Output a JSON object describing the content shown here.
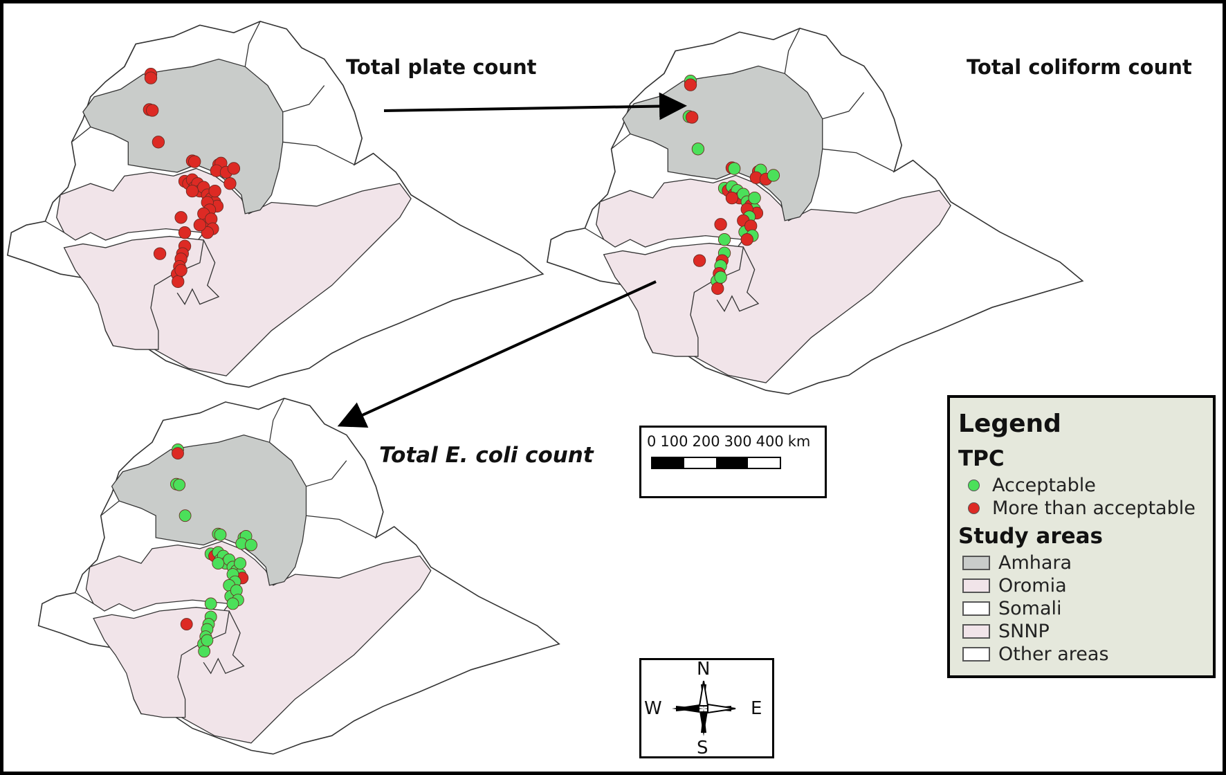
{
  "titles": {
    "tpc": "Total plate count",
    "tcc": "Total coliform count",
    "ecoli": "Total E. coli count"
  },
  "legend": {
    "title": "Legend",
    "tpc_heading": "TPC",
    "tpc_items": [
      {
        "label": "Acceptable",
        "color": "#4be05a"
      },
      {
        "label": "More than acceptable",
        "color": "#dd2a24"
      }
    ],
    "study_heading": "Study areas",
    "study_items": [
      {
        "label": "Amhara",
        "color": "#c9ccca"
      },
      {
        "label": "Oromia",
        "color": "#f1e4e9"
      },
      {
        "label": "Somali",
        "color": "#ffffff"
      },
      {
        "label": "SNNP",
        "color": "#f1e4e9"
      },
      {
        "label": "Other areas",
        "color": "#ffffff"
      }
    ]
  },
  "scale_bar": {
    "labels": [
      "0",
      "100",
      "200",
      "300",
      "400",
      "km"
    ]
  },
  "compass": {
    "n": "N",
    "s": "S",
    "e": "E",
    "w": "W"
  },
  "colors": {
    "acceptable": "#4be05a",
    "unacceptable": "#dd2a24",
    "amhara": "#c9ccca",
    "oromia": "#f1e4e9",
    "border": "#333333"
  },
  "maps": [
    {
      "key": "tpc",
      "green_samples": 0,
      "red_samples": 44
    },
    {
      "key": "tcc",
      "green_samples": 20,
      "red_samples": 22
    },
    {
      "key": "ecoli",
      "green_samples": 36,
      "red_samples": 4
    }
  ]
}
